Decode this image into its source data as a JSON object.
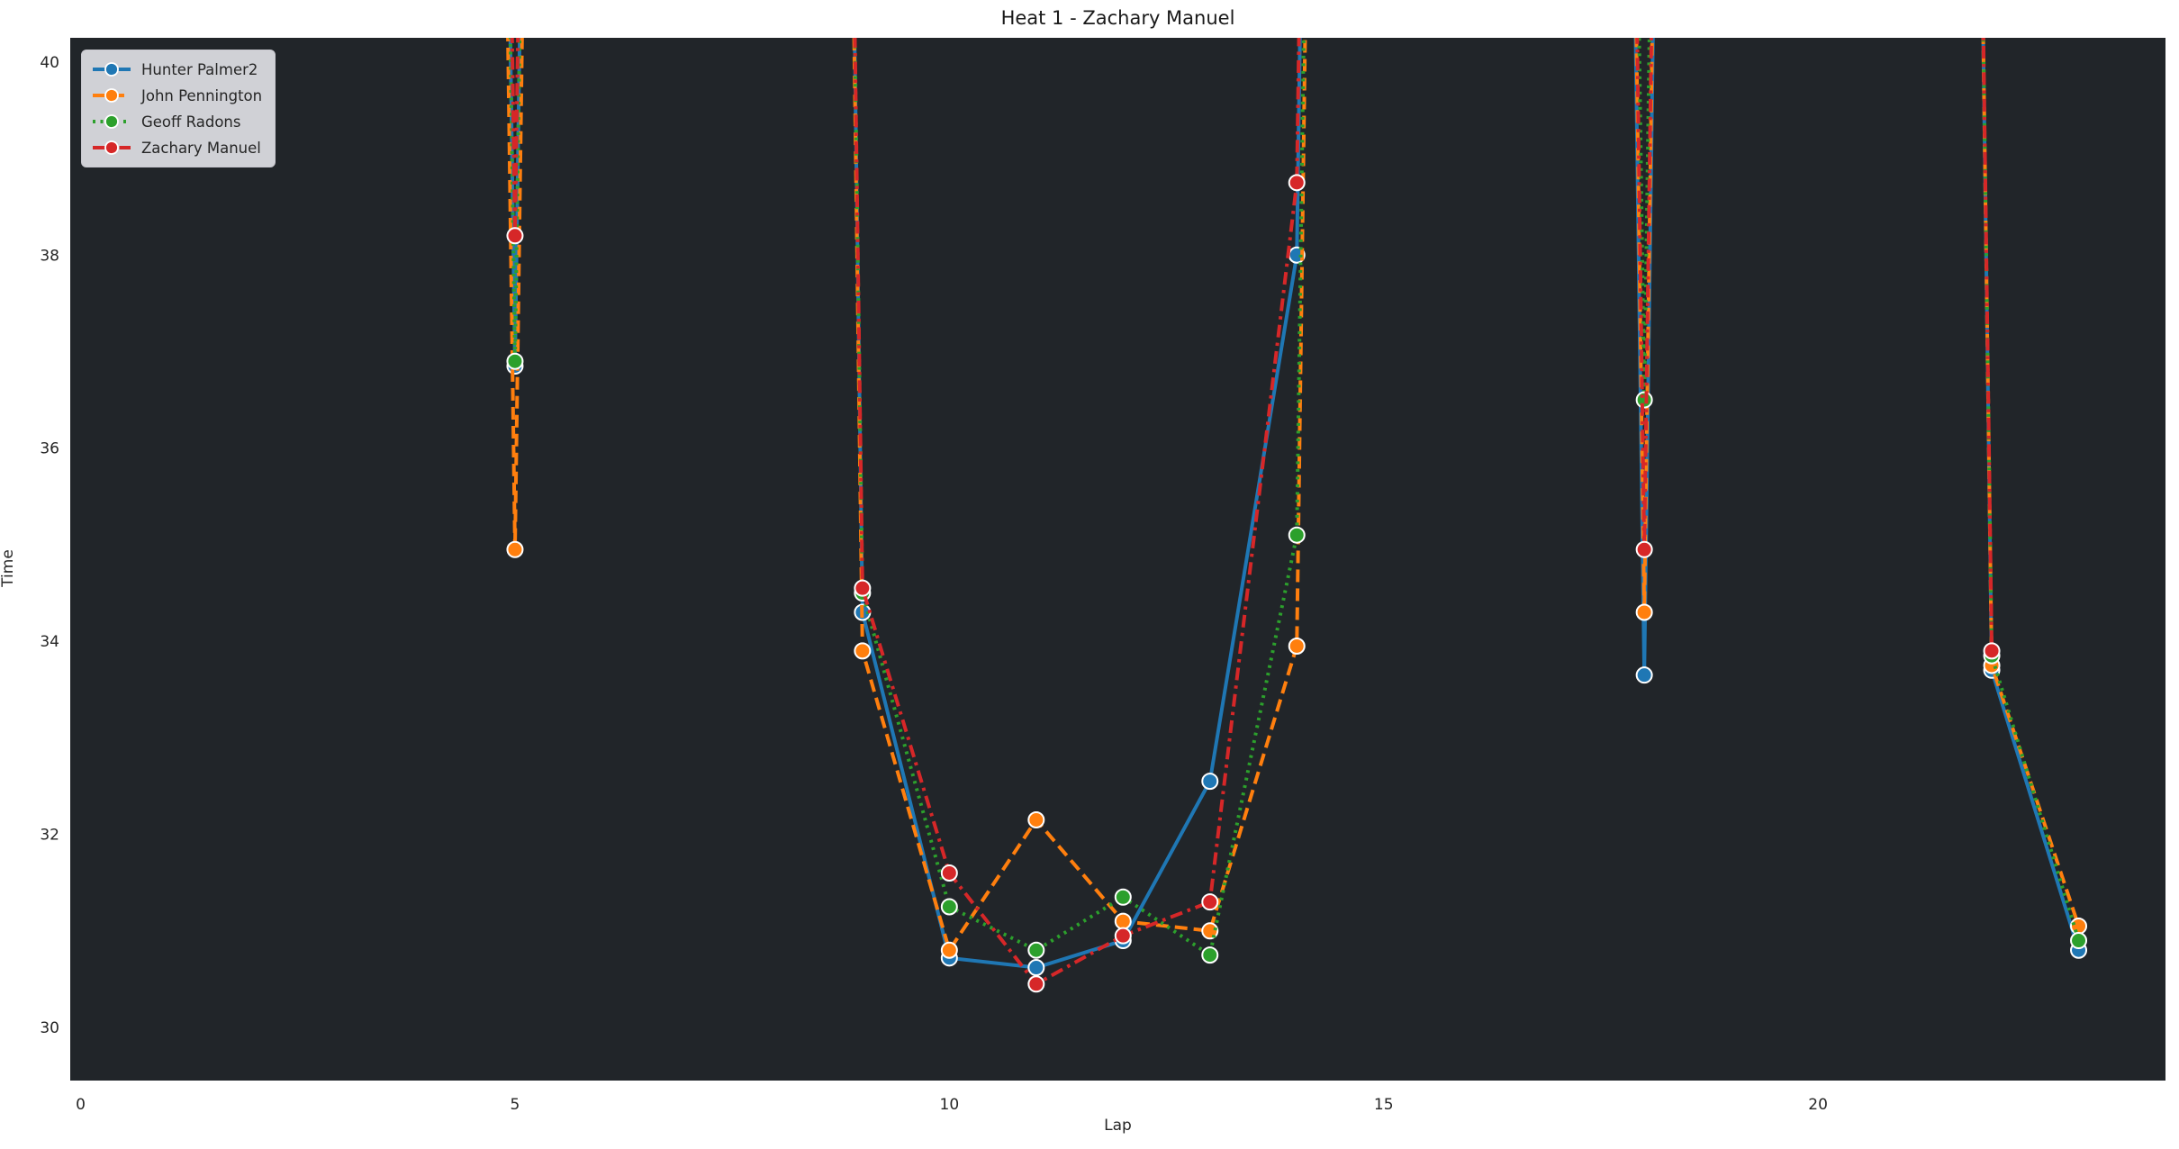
{
  "title": "Heat 1 - Zachary Manuel",
  "axes": {
    "xlabel": "Lap",
    "ylabel": "Time",
    "background_color": "#212529",
    "figure_background": "#ffffff",
    "tick_color": "#262626"
  },
  "legend": {
    "position": "upper-left",
    "background": "#e0e0e5"
  },
  "chart_data": {
    "type": "line",
    "title": "Heat 1 - Zachary Manuel",
    "xlabel": "Lap",
    "ylabel": "Time",
    "x_ticks": [
      0,
      5,
      10,
      15,
      20
    ],
    "y_ticks": [
      30,
      32,
      34,
      36,
      38,
      40
    ],
    "xlim": [
      -0.12,
      24.0
    ],
    "ylim": [
      29.45,
      40.25
    ],
    "grid": false,
    "legend_position": "upper-left",
    "offscale_note": "Laps between visible clusters spike far above the 40s axis limit; they are encoded as 100 and render as clipped near-vertical lines.",
    "series": [
      {
        "name": "Hunter Palmer2",
        "color": "#1f77b4",
        "line_style": "solid",
        "x": [
          0,
          1,
          2,
          3,
          4,
          5,
          6,
          7,
          8,
          9,
          10,
          11,
          12,
          13,
          14,
          15,
          16,
          17,
          18,
          19,
          20,
          21,
          22,
          23
        ],
        "y": [
          100,
          100,
          100,
          100,
          100,
          36.85,
          100,
          100,
          100,
          34.3,
          30.72,
          30.62,
          30.9,
          32.55,
          38.0,
          100,
          100,
          100,
          33.65,
          100,
          100,
          100,
          33.7,
          30.8
        ]
      },
      {
        "name": "John Pennington",
        "color": "#ff7f0e",
        "line_style": "dashed",
        "x": [
          0,
          1,
          2,
          3,
          4,
          5,
          6,
          7,
          8,
          9,
          10,
          11,
          12,
          13,
          14,
          15,
          16,
          17,
          18,
          19,
          20,
          21,
          22,
          23
        ],
        "y": [
          100,
          100,
          100,
          100,
          100,
          34.95,
          100,
          100,
          100,
          33.9,
          30.8,
          32.15,
          31.1,
          31.0,
          33.95,
          100,
          100,
          100,
          34.3,
          100,
          100,
          100,
          33.75,
          31.05
        ]
      },
      {
        "name": "Geoff Radons",
        "color": "#2ca02c",
        "line_style": "dotted",
        "x": [
          0,
          1,
          2,
          3,
          4,
          5,
          6,
          7,
          8,
          9,
          10,
          11,
          12,
          13,
          14,
          15,
          16,
          17,
          18,
          19,
          20,
          21,
          22,
          23
        ],
        "y": [
          100,
          100,
          100,
          100,
          100,
          36.9,
          100,
          100,
          100,
          34.5,
          31.25,
          30.8,
          31.35,
          30.75,
          35.1,
          100,
          100,
          100,
          36.5,
          100,
          100,
          100,
          33.85,
          30.9
        ]
      },
      {
        "name": "Zachary Manuel",
        "color": "#d62728",
        "line_style": "dashdot",
        "x": [
          0,
          1,
          2,
          3,
          4,
          5,
          6,
          7,
          8,
          9,
          10,
          11,
          12,
          13,
          14,
          15,
          16,
          17,
          18,
          19,
          20,
          21,
          22
        ],
        "y": [
          100,
          100,
          100,
          100,
          100,
          38.2,
          100,
          100,
          100,
          34.55,
          31.6,
          30.45,
          30.95,
          31.3,
          38.75,
          100,
          100,
          100,
          34.95,
          100,
          100,
          100,
          33.9
        ]
      }
    ]
  }
}
